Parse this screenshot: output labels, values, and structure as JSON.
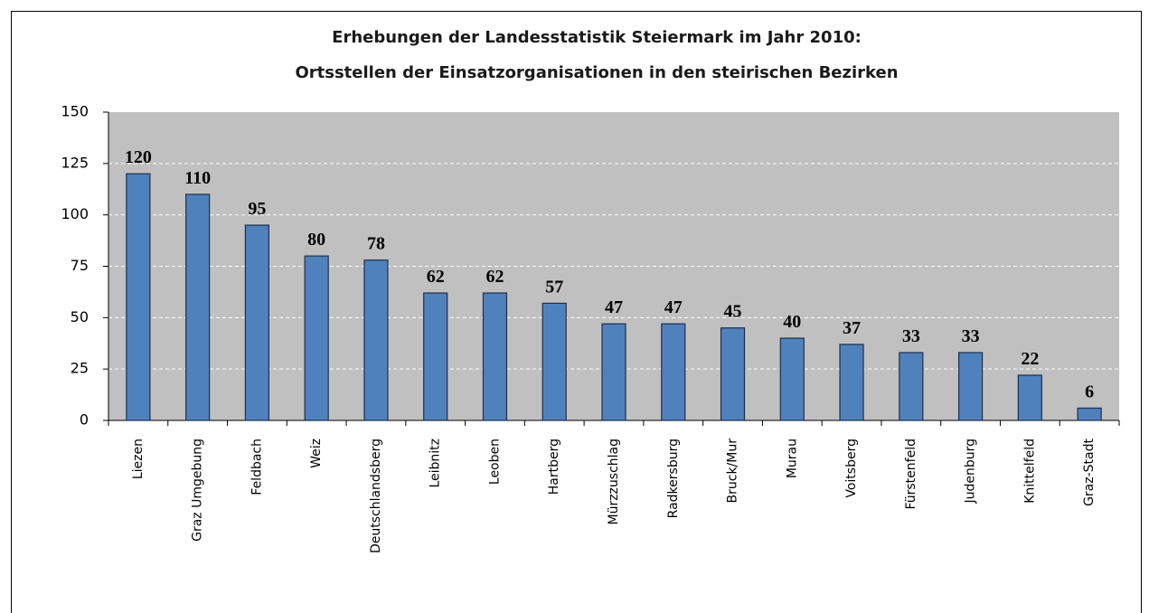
{
  "chart_data": {
    "type": "bar",
    "title": [
      "Erhebungen der Landesstatistik Steiermark im Jahr 2010:",
      "Ortsstellen der Einsatzorganisationen  in den steirischen Bezirken"
    ],
    "categories": [
      "Liezen",
      "Graz Umgebung",
      "Feldbach",
      "Weiz",
      "Deutschlandsberg",
      "Leibnitz",
      "Leoben",
      "Hartberg",
      "Mürzzuschlag",
      "Radkersburg",
      "Bruck/Mur",
      "Murau",
      "Voitsberg",
      "Fürstenfeld",
      "Judenburg",
      "Knittelfeld",
      "Graz-Stadt"
    ],
    "values": [
      120,
      110,
      95,
      80,
      78,
      62,
      62,
      57,
      47,
      47,
      45,
      40,
      37,
      33,
      33,
      22,
      6
    ],
    "color": "#4f81bd",
    "ylim": [
      0,
      150
    ],
    "yticks": [
      0,
      25,
      50,
      75,
      100,
      125,
      150
    ],
    "grid": true
  }
}
